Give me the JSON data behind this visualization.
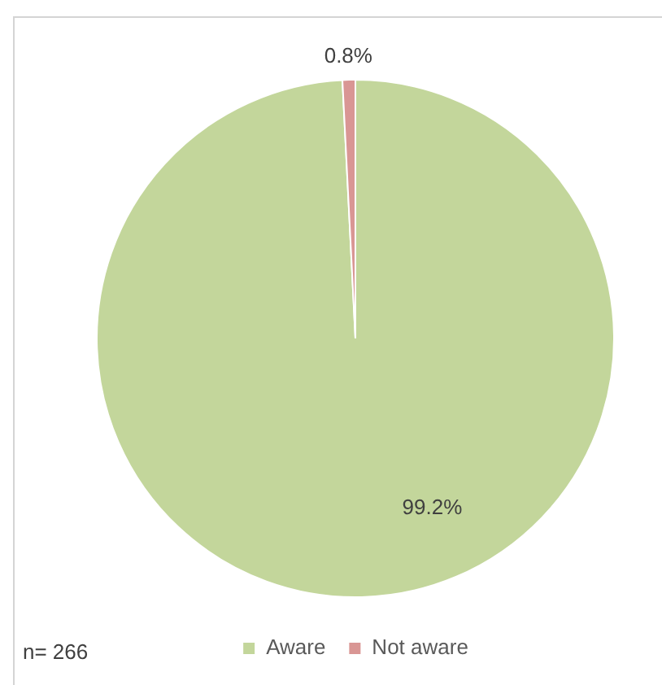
{
  "chart_data": {
    "type": "pie",
    "categories": [
      "Aware",
      "Not aware"
    ],
    "values": [
      99.2,
      0.8
    ],
    "colors": [
      "#c3d69b",
      "#d99694"
    ],
    "value_labels": [
      "99.2%",
      "0.8%"
    ],
    "legend": "bottom",
    "annotations": [
      "n= 266"
    ]
  }
}
